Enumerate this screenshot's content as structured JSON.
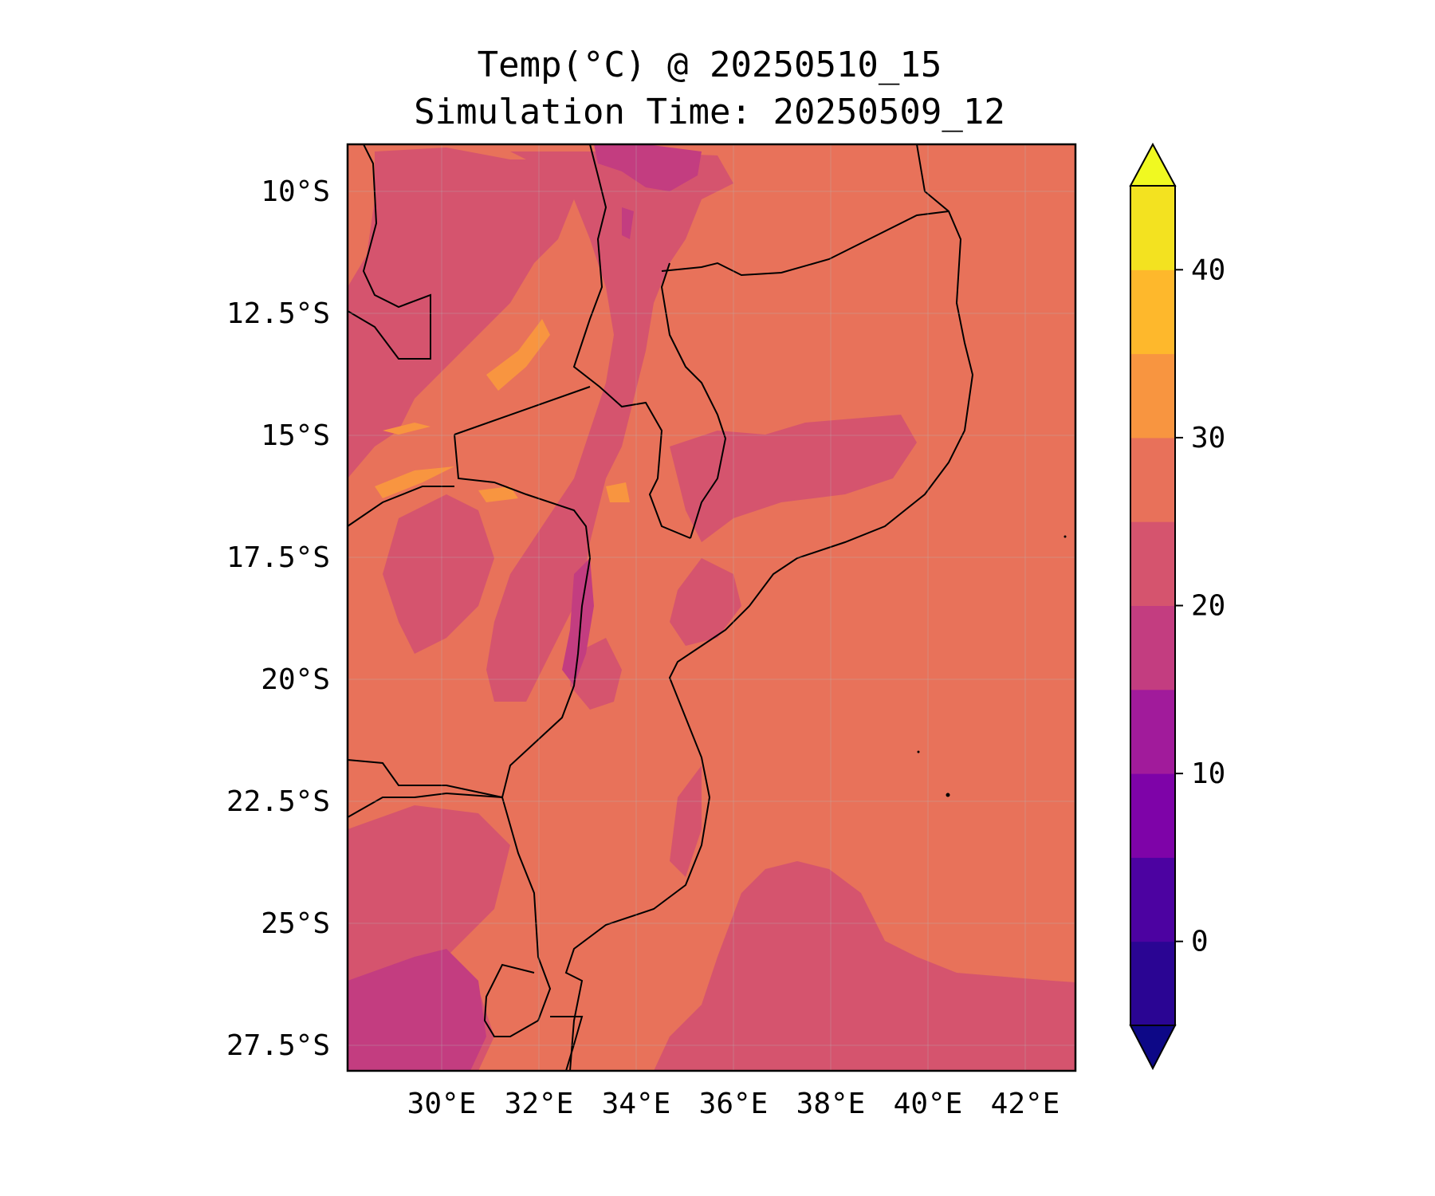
{
  "title": {
    "line1": "Temp(°C) @ 20250510_15",
    "line2": "Simulation Time: 20250509_12"
  },
  "map": {
    "lon_range": [
      28,
      43
    ],
    "lat_range": [
      -28.3,
      -9.3
    ],
    "lat_ticks": [
      "10°S",
      "12.5°S",
      "15°S",
      "17.5°S",
      "20°S",
      "22.5°S",
      "25°S",
      "27.5°S"
    ],
    "lon_ticks": [
      "30°E",
      "32°E",
      "34°E",
      "36°E",
      "38°E",
      "40°E",
      "42°E"
    ],
    "background_value": "25-30 °C"
  },
  "colorbar": {
    "ticks": [
      "0",
      "10",
      "20",
      "30",
      "40"
    ],
    "levels": [
      -5,
      0,
      5,
      10,
      15,
      20,
      25,
      30,
      35,
      40,
      45
    ],
    "extend": "both",
    "colors": [
      "#0d0887",
      "#2a0593",
      "#4c02a1",
      "#7e03a8",
      "#a11b9b",
      "#c33d80",
      "#d5546e",
      "#e8715a",
      "#f89540",
      "#feb82c",
      "#f3e220",
      "#f0f921"
    ]
  }
}
